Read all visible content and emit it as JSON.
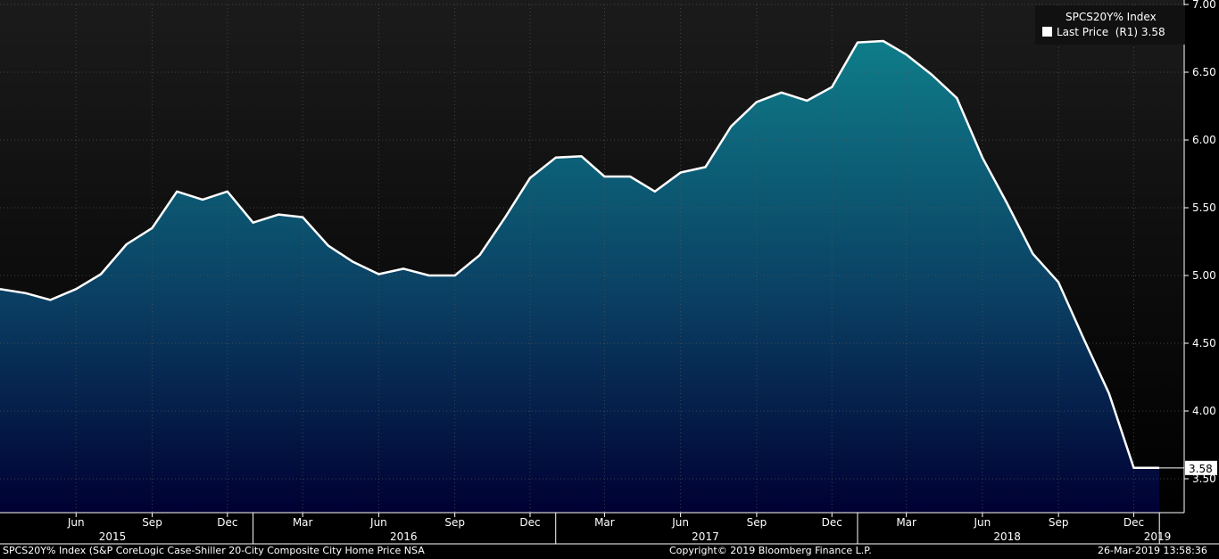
{
  "chart_data": {
    "type": "area",
    "title": "",
    "legend": {
      "title": "SPCS20Y% Index",
      "entry_label": "Last Price",
      "entry_axis": "(R1)",
      "entry_value": "3.58",
      "position": "top-right"
    },
    "ylim": [
      3.25,
      7.0
    ],
    "y_axis_side": "right",
    "y_ticks": [
      "3.50",
      "4.00",
      "4.50",
      "5.00",
      "5.50",
      "6.00",
      "6.50",
      "7.00"
    ],
    "y_tick_values": [
      3.5,
      4.0,
      4.5,
      5.0,
      5.5,
      6.0,
      6.5,
      7.0
    ],
    "last_value_label": "3.58",
    "grid": true,
    "x_range": [
      "2015-03-01",
      "2019-01-31"
    ],
    "x_ticks_month": [
      {
        "label": "Jun",
        "date": "2015-06-01"
      },
      {
        "label": "Sep",
        "date": "2015-09-01"
      },
      {
        "label": "Dec",
        "date": "2015-12-01"
      },
      {
        "label": "Mar",
        "date": "2016-03-01"
      },
      {
        "label": "Jun",
        "date": "2016-06-01"
      },
      {
        "label": "Sep",
        "date": "2016-09-01"
      },
      {
        "label": "Dec",
        "date": "2016-12-01"
      },
      {
        "label": "Mar",
        "date": "2017-03-01"
      },
      {
        "label": "Jun",
        "date": "2017-06-01"
      },
      {
        "label": "Sep",
        "date": "2017-09-01"
      },
      {
        "label": "Dec",
        "date": "2017-12-01"
      },
      {
        "label": "Mar",
        "date": "2018-03-01"
      },
      {
        "label": "Jun",
        "date": "2018-06-01"
      },
      {
        "label": "Sep",
        "date": "2018-09-01"
      },
      {
        "label": "Dec",
        "date": "2018-12-01"
      }
    ],
    "x_ticks_year": [
      {
        "label": "2015",
        "date": "2015-07-15"
      },
      {
        "label": "2016",
        "date": "2016-07-01"
      },
      {
        "label": "2017",
        "date": "2017-07-01"
      },
      {
        "label": "2018",
        "date": "2018-07-01"
      },
      {
        "label": "2019",
        "date": "2019-01-01"
      }
    ],
    "year_separators": [
      "2016-01-01",
      "2017-01-01",
      "2018-01-01",
      "2019-01-01"
    ],
    "series": [
      {
        "name": "Last Price",
        "x": [
          "2015-03-01",
          "2015-04-01",
          "2015-05-01",
          "2015-06-01",
          "2015-07-01",
          "2015-08-01",
          "2015-09-01",
          "2015-10-01",
          "2015-11-01",
          "2015-12-01",
          "2016-01-01",
          "2016-02-01",
          "2016-03-01",
          "2016-04-01",
          "2016-05-01",
          "2016-06-01",
          "2016-07-01",
          "2016-08-01",
          "2016-09-01",
          "2016-10-01",
          "2016-11-01",
          "2016-12-01",
          "2017-01-01",
          "2017-02-01",
          "2017-03-01",
          "2017-04-01",
          "2017-05-01",
          "2017-06-01",
          "2017-07-01",
          "2017-08-01",
          "2017-09-01",
          "2017-10-01",
          "2017-11-01",
          "2017-12-01",
          "2018-01-01",
          "2018-02-01",
          "2018-03-01",
          "2018-04-01",
          "2018-05-01",
          "2018-06-01",
          "2018-07-01",
          "2018-08-01",
          "2018-09-01",
          "2018-10-01",
          "2018-11-01",
          "2018-12-01",
          "2019-01-01"
        ],
        "values": [
          4.9,
          4.87,
          4.82,
          4.9,
          5.01,
          5.23,
          5.35,
          5.62,
          5.56,
          5.62,
          5.39,
          5.45,
          5.43,
          5.22,
          5.1,
          5.01,
          5.05,
          5.0,
          5.0,
          5.15,
          5.43,
          5.72,
          5.87,
          5.88,
          5.73,
          5.73,
          5.62,
          5.76,
          5.8,
          6.1,
          6.28,
          6.35,
          6.29,
          6.39,
          6.72,
          6.73,
          6.63,
          6.48,
          6.31,
          5.87,
          5.53,
          5.16,
          4.95,
          4.54,
          4.13,
          3.58,
          3.58
        ]
      }
    ]
  },
  "footer": {
    "left": "SPCS20Y% Index (S&P CoreLogic Case-Shiller 20-City Composite City Home Price NSA",
    "center": "Copyright© 2019 Bloomberg Finance L.P.",
    "right": "26-Mar-2019 13:58:36"
  },
  "colors": {
    "background_top": "#1b1b1b",
    "area_top": "#0f7e8a",
    "area_bottom": "#000033",
    "line": "#ffffff",
    "grid": "#555555"
  }
}
